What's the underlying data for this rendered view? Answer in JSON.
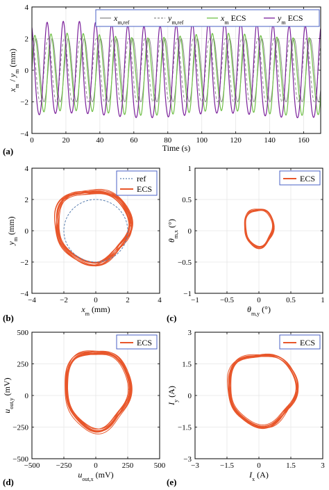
{
  "colors": {
    "x_ref": "#8c8c8c",
    "y_ref": "#8c8c8c",
    "x_ecs": "#6fbf47",
    "y_ecs": "#7a1f9a",
    "ecs_orbit": "#e8562a",
    "ref_circle": "#5a7fb0",
    "grid": "#e6e6e6",
    "legend_border": "#4a60c4"
  },
  "chart_data": [
    {
      "panel": "(a)",
      "type": "line",
      "xlabel": "Time (s)",
      "ylabel_main": "x",
      "ylabel_sub1": "m",
      "ylabel_sep": " / y",
      "ylabel_sub2": "m",
      "ylabel_unit": " (mm)",
      "xlim": [
        0,
        170
      ],
      "ylim": [
        -4,
        4
      ],
      "xticks": [
        "0",
        "20",
        "40",
        "60",
        "80",
        "100",
        "120",
        "140",
        "160"
      ],
      "yticks": [
        "-4",
        "-2",
        "0",
        "2",
        "4"
      ],
      "grid": true,
      "legend_placement": "top-right",
      "legend": [
        {
          "main": "x",
          "sub": "m,ref",
          "suffix": "",
          "style": "solid-gray"
        },
        {
          "main": "y",
          "sub": "m,ref",
          "suffix": "",
          "style": "dashed-gray"
        },
        {
          "main": "x",
          "sub": "m",
          "suffix": " ECS",
          "style": "solid-green"
        },
        {
          "main": "y",
          "sub": "m",
          "suffix": " ECS",
          "style": "solid-purple"
        }
      ],
      "series": [
        {
          "name": "x_m,ref",
          "period_s": 9.5,
          "amplitude_mm": 2.0,
          "phase": 0.0
        },
        {
          "name": "y_m,ref",
          "period_s": 9.5,
          "amplitude_mm": 2.0,
          "phase": 1.5708
        },
        {
          "name": "x_m ECS",
          "period_s": 9.5,
          "amplitude_mm": 2.4,
          "offset_mm": -0.3,
          "phase": 0.25
        },
        {
          "name": "y_m ECS",
          "period_s": 9.5,
          "amplitude_mm": 2.9,
          "offset_mm": -0.2,
          "phase": 1.9
        }
      ]
    },
    {
      "panel": "(b)",
      "type": "line",
      "xlabel_main": "x",
      "xlabel_sub": "m",
      "xlabel_unit": " (mm)",
      "ylabel_main": "y",
      "ylabel_sub": "m",
      "ylabel_unit": " (mm)",
      "xlim": [
        -4,
        4
      ],
      "ylim": [
        -4,
        4
      ],
      "xticks": [
        "-4",
        "-2",
        "0",
        "2",
        "4"
      ],
      "yticks": [
        "-4",
        "-2",
        "0",
        "2",
        "4"
      ],
      "grid": true,
      "legend_placement": "top-right",
      "legend": [
        {
          "label": "ref",
          "style": "dotted-blue"
        },
        {
          "label": "ECS",
          "style": "solid-orange"
        }
      ],
      "ref_circle": {
        "center": [
          0,
          0
        ],
        "radius_mm": 2.0
      },
      "ecs_orbit": {
        "center": [
          -0.2,
          0.3
        ],
        "rx_mm": 2.3,
        "ry_mm": 2.3
      }
    },
    {
      "panel": "(c)",
      "type": "line",
      "xlabel_main": "θ",
      "xlabel_sub": "m,y",
      "xlabel_unit": " (°)",
      "ylabel_main": "θ",
      "ylabel_sub": "m,x",
      "ylabel_unit": " (°)",
      "xlim": [
        -1,
        1
      ],
      "ylim": [
        -1,
        1
      ],
      "xticks": [
        "-1",
        "-0.5",
        "0",
        "0.5",
        "1"
      ],
      "yticks": [
        "-1",
        "-0.5",
        "0",
        "0.5",
        "1"
      ],
      "grid": true,
      "legend_placement": "top-right",
      "legend": [
        {
          "label": "ECS",
          "style": "solid-orange"
        }
      ],
      "ecs_orbit": {
        "center": [
          0.0,
          0.05
        ],
        "rx_deg": 0.22,
        "ry_deg": 0.3
      }
    },
    {
      "panel": "(d)",
      "type": "line",
      "xlabel_main": "u",
      "xlabel_sub": "out,x",
      "xlabel_unit": " (mV)",
      "ylabel_main": "u",
      "ylabel_sub": "out,y",
      "ylabel_unit": " (mV)",
      "xlim": [
        -500,
        500
      ],
      "ylim": [
        -500,
        500
      ],
      "xticks": [
        "-500",
        "-250",
        "0",
        "250",
        "500"
      ],
      "yticks": [
        "-500",
        "-250",
        "0",
        "250",
        "500"
      ],
      "grid": true,
      "legend_placement": "top-right",
      "legend": [
        {
          "label": "ECS",
          "style": "solid-orange"
        }
      ],
      "ecs_orbit": {
        "center": [
          10,
          50
        ],
        "rx_mV": 250,
        "ry_mV": 310
      }
    },
    {
      "panel": "(e)",
      "type": "line",
      "xlabel_main": "I",
      "xlabel_sub": "x",
      "xlabel_unit": " (A)",
      "ylabel_main": "I",
      "ylabel_sub": "y",
      "ylabel_unit": " (A)",
      "xlim": [
        -3,
        3
      ],
      "ylim": [
        -3,
        3
      ],
      "xticks": [
        "-3",
        "-1.5",
        "0",
        "1.5",
        "3"
      ],
      "yticks": [
        "-3",
        "-1.5",
        "0",
        "1.5",
        "3"
      ],
      "grid": true,
      "legend_placement": "top-right",
      "legend": [
        {
          "label": "ECS",
          "style": "solid-orange"
        }
      ],
      "ecs_orbit": {
        "center": [
          0.15,
          0.3
        ],
        "rx_A": 1.6,
        "ry_A": 1.7
      }
    }
  ]
}
